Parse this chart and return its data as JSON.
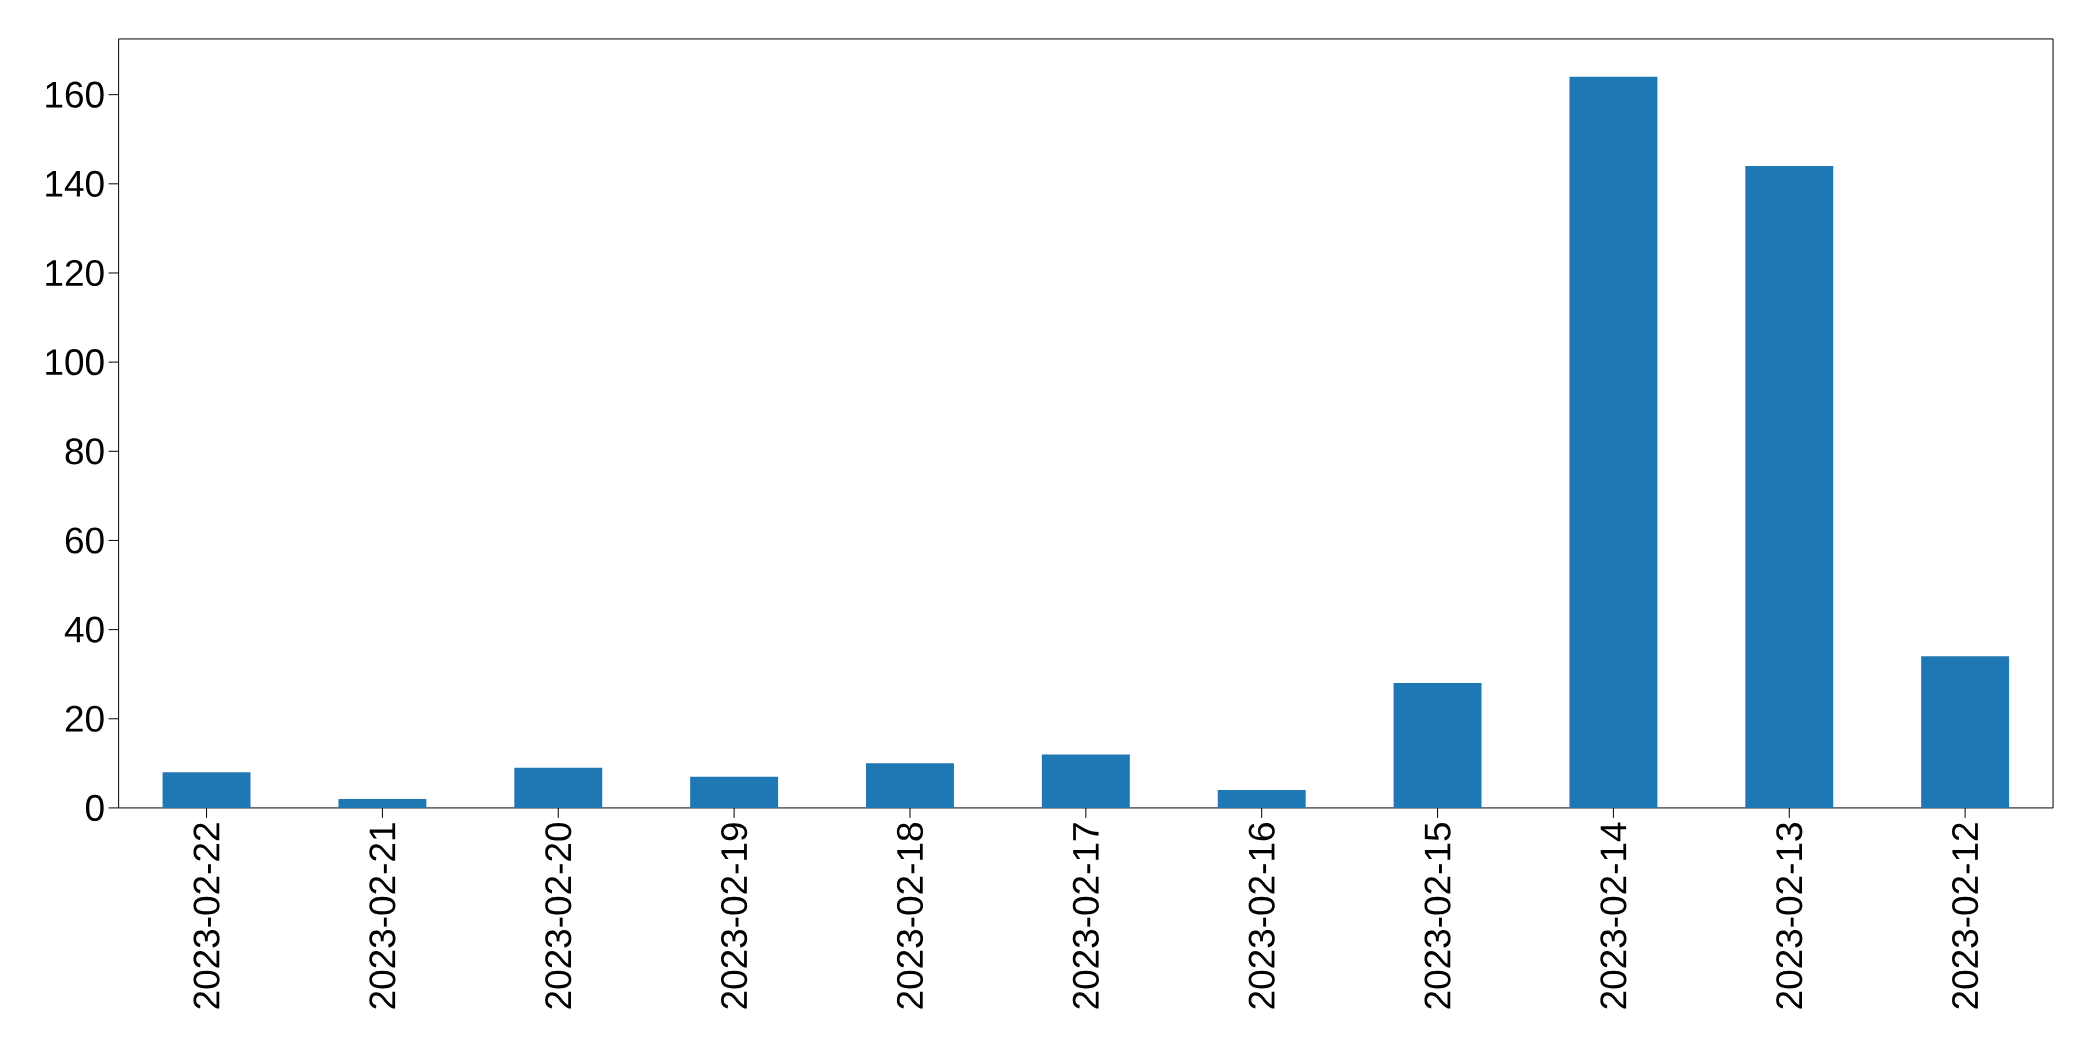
{
  "chart_data": {
    "type": "bar",
    "categories": [
      "2023-02-22",
      "2023-02-21",
      "2023-02-20",
      "2023-02-19",
      "2023-02-18",
      "2023-02-17",
      "2023-02-16",
      "2023-02-15",
      "2023-02-14",
      "2023-02-13",
      "2023-02-12"
    ],
    "values": [
      8,
      2,
      9,
      7,
      10,
      12,
      4,
      28,
      164,
      144,
      34
    ],
    "color": "#1f77b4",
    "ylim": [
      0,
      172.5
    ],
    "yticks": [
      0,
      20,
      40,
      60,
      80,
      100,
      120,
      140,
      160
    ]
  }
}
